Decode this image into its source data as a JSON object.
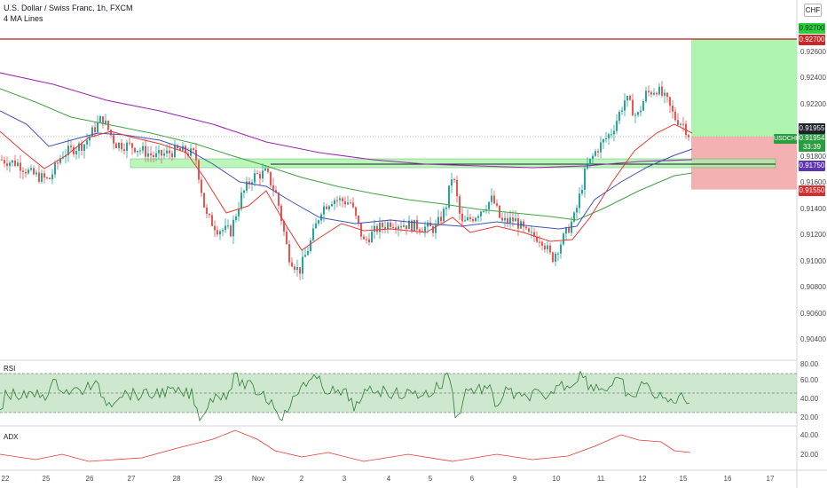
{
  "header": {
    "title": "U.S. Dollar / Swiss Franc, 1h, FXCM",
    "indicator": "4 MA Lines",
    "currency": "CHF"
  },
  "symbol_tag": "USDCHF",
  "price_tags": {
    "target_top": "0.92700",
    "target": "0.92700",
    "last": "0.91955",
    "current": "0.91954",
    "countdown": "33:39",
    "support": "0.91750",
    "stop": "0.91550"
  },
  "price_axis": [
    "0.92600",
    "0.92400",
    "0.92200",
    "0.91800",
    "0.91600",
    "0.91400",
    "0.91200",
    "0.91000",
    "0.90800",
    "0.90600",
    "0.90400"
  ],
  "rsi": {
    "label": "RSI",
    "axis": [
      "80.00",
      "60.00",
      "40.00",
      "20.00"
    ]
  },
  "adx": {
    "label": "ADX",
    "axis": [
      "40.00",
      "20.00"
    ]
  },
  "time_axis": [
    "22",
    "25",
    "26",
    "27",
    "28",
    "29",
    "Nov",
    "2",
    "3",
    "4",
    "5",
    "6",
    "9",
    "10",
    "11",
    "12",
    "15",
    "16",
    "17"
  ],
  "colors": {
    "up_candle": "#26a69a",
    "down_candle": "#ef5350",
    "ma_red": "#e53935",
    "ma_blue": "#3f51b5",
    "ma_green": "#43a047",
    "ma_purple": "#9c27b0",
    "target_zone": "#a5f3a5",
    "stop_zone": "#f3a8aa",
    "resistance_line": "#b71c1c"
  }
}
